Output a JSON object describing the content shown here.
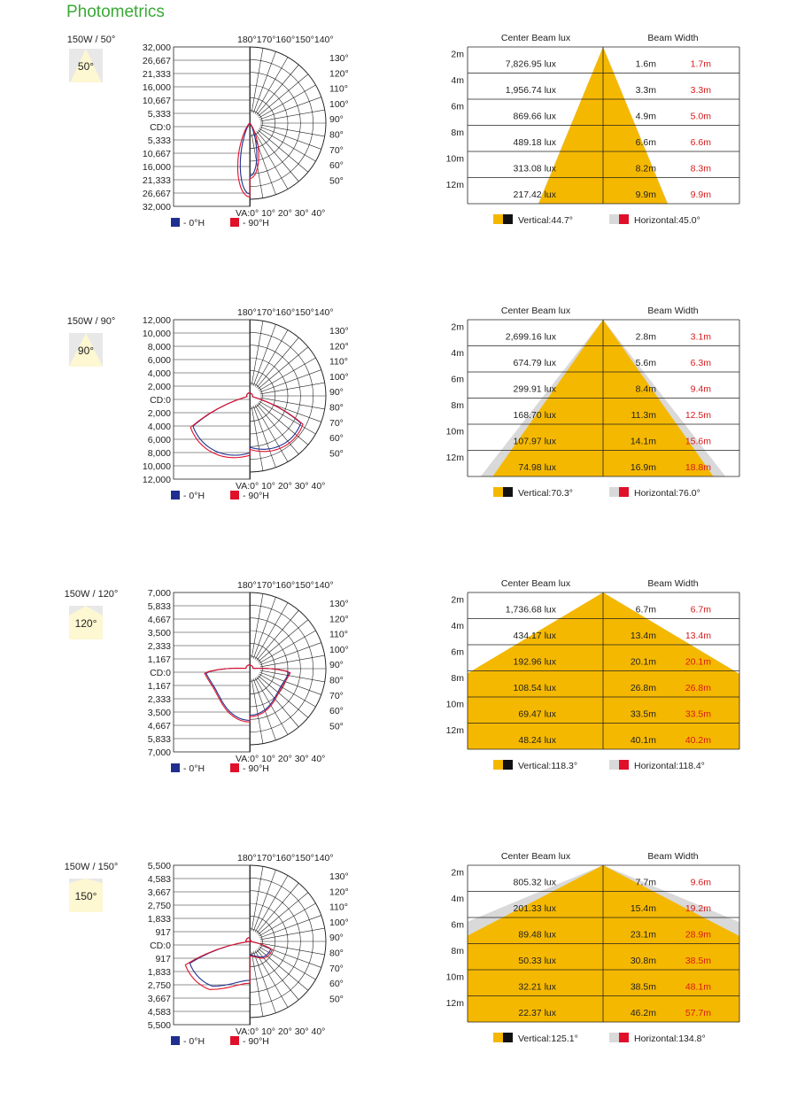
{
  "page_title": "Photometrics",
  "colors": {
    "title": "#3aa935",
    "beam_fill": "#f5b800",
    "beam_gray": "#d9d9d9",
    "curve_0h": "#1f2f8f",
    "curve_90h": "#e0102a",
    "beam_value_red": "#d61a1a",
    "icon_bg": "#fdf7d2"
  },
  "polar_axis_top_labels": "180°170°160°150°140°",
  "polar_right_labels": [
    "130°",
    "120°",
    "110°",
    "100°",
    "90°",
    "80°",
    "70°",
    "60°",
    "50°"
  ],
  "polar_bottom_labels": "VA:0° 10° 20° 30° 40°",
  "legend_0h": "- 0°H",
  "legend_90h": "- 90°H",
  "beam_header_lux": "Center Beam lux",
  "beam_header_width": "Beam Width",
  "blocks": [
    {
      "watt_label": "150W / 50°",
      "beam_icon_label": "50°",
      "beam_angle": 50,
      "polar_ticks": [
        "32,000",
        "26,667",
        "21,333",
        "16,000",
        "10,667",
        "5,333",
        "CD:0",
        "5,333",
        "10,667",
        "16,000",
        "21,333",
        "26,667",
        "32,000"
      ],
      "chart_data": {
        "type": "table",
        "title": "Center Beam lux / Beam Width",
        "distances": [
          "2m",
          "4m",
          "6m",
          "8m",
          "10m",
          "12m"
        ],
        "center_beam_lux": [
          "7,826.95 lux",
          "1,956.74 lux",
          "869.66 lux",
          "489.18 lux",
          "313.08 lux",
          "217.42 lux"
        ],
        "beam_width_vertical": [
          "1.6m",
          "3.3m",
          "4.9m",
          "6.6m",
          "8.2m",
          "9.9m"
        ],
        "beam_width_horizontal": [
          "1.7m",
          "3.3m",
          "5.0m",
          "6.6m",
          "8.3m",
          "9.9m"
        ],
        "vertical_angle": 44.7,
        "horizontal_angle": 45.0,
        "vertical_label": "Vertical:44.7°",
        "horizontal_label": "Horizontal:45.0°"
      }
    },
    {
      "watt_label": "150W / 90°",
      "beam_icon_label": "90°",
      "beam_angle": 90,
      "polar_ticks": [
        "12,000",
        "10,000",
        "8,000",
        "6,000",
        "4,000",
        "2,000",
        "CD:0",
        "2,000",
        "4,000",
        "6,000",
        "8,000",
        "10,000",
        "12,000"
      ],
      "chart_data": {
        "type": "table",
        "title": "Center Beam lux / Beam Width",
        "distances": [
          "2m",
          "4m",
          "6m",
          "8m",
          "10m",
          "12m"
        ],
        "center_beam_lux": [
          "2,699.16 lux",
          "674.79 lux",
          "299.91 lux",
          "168.70 lux",
          "107.97 lux",
          "74.98 lux"
        ],
        "beam_width_vertical": [
          "2.8m",
          "5.6m",
          "8.4m",
          "11.3m",
          "14.1m",
          "16.9m"
        ],
        "beam_width_horizontal": [
          "3.1m",
          "6.3m",
          "9.4m",
          "12.5m",
          "15.6m",
          "18.8m"
        ],
        "vertical_angle": 70.3,
        "horizontal_angle": 76.0,
        "vertical_label": "Vertical:70.3°",
        "horizontal_label": "Horizontal:76.0°"
      }
    },
    {
      "watt_label": "150W / 120°",
      "beam_icon_label": "120°",
      "beam_angle": 120,
      "polar_ticks": [
        "7,000",
        "5,833",
        "4,667",
        "3,500",
        "2,333",
        "1,167",
        "CD:0",
        "1,167",
        "2,333",
        "3,500",
        "4,667",
        "5,833",
        "7,000"
      ],
      "chart_data": {
        "type": "table",
        "title": "Center Beam lux / Beam Width",
        "distances": [
          "2m",
          "4m",
          "6m",
          "8m",
          "10m",
          "12m"
        ],
        "center_beam_lux": [
          "1,736.68 lux",
          "434.17 lux",
          "192.96 lux",
          "108.54 lux",
          "69.47 lux",
          "48.24 lux"
        ],
        "beam_width_vertical": [
          "6.7m",
          "13.4m",
          "20.1m",
          "26.8m",
          "33.5m",
          "40.1m"
        ],
        "beam_width_horizontal": [
          "6.7m",
          "13.4m",
          "20.1m",
          "26.8m",
          "33.5m",
          "40.2m"
        ],
        "vertical_angle": 118.3,
        "horizontal_angle": 118.4,
        "vertical_label": "Vertical:118.3°",
        "horizontal_label": "Horizontal:118.4°"
      }
    },
    {
      "watt_label": "150W / 150°",
      "beam_icon_label": "150°",
      "beam_angle": 150,
      "polar_ticks": [
        "5,500",
        "4,583",
        "3,667",
        "2,750",
        "1,833",
        "917",
        "CD:0",
        "917",
        "1,833",
        "2,750",
        "3,667",
        "4,583",
        "5,500"
      ],
      "chart_data": {
        "type": "table",
        "title": "Center Beam lux / Beam Width",
        "distances": [
          "2m",
          "4m",
          "6m",
          "8m",
          "10m",
          "12m"
        ],
        "center_beam_lux": [
          "805.32 lux",
          "201.33 lux",
          "89.48 lux",
          "50.33 lux",
          "32.21 lux",
          "22.37 lux"
        ],
        "beam_width_vertical": [
          "7.7m",
          "15.4m",
          "23.1m",
          "30.8m",
          "38.5m",
          "46.2m"
        ],
        "beam_width_horizontal": [
          "9.6m",
          "19.2m",
          "28.9m",
          "38.5m",
          "48.1m",
          "57.7m"
        ],
        "vertical_angle": 125.1,
        "horizontal_angle": 134.8,
        "vertical_label": "Vertical:125.1°",
        "horizontal_label": "Horizontal:134.8°"
      }
    }
  ]
}
